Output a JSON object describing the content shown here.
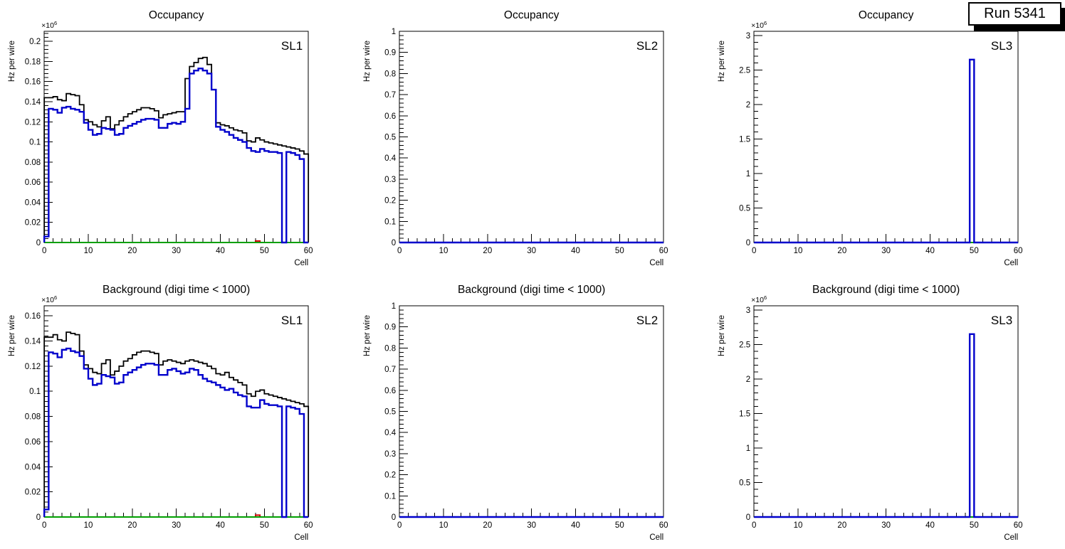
{
  "run_badge": {
    "label": "Run 5341"
  },
  "palette": {
    "black": "#000000",
    "blue": "#0000cc",
    "green": "#00a000",
    "red": "#cc0000",
    "frame": "#000000"
  },
  "chart_data": [
    {
      "id": "occupancy-sl1",
      "type": "bar",
      "title": "Occupancy",
      "pad_label": "SL1",
      "xlabel": "Cell",
      "ylabel": "Hz per wire",
      "y_mult_base": "×10",
      "y_mult_exp": "6",
      "x": {
        "min": 0,
        "max": 60,
        "major_step": 10,
        "minor_step": 2
      },
      "y": {
        "min": 0,
        "max": 0.21,
        "label_max": 0.2,
        "major_step": 0.02,
        "minor_step": 0.004
      },
      "grid": false,
      "legend": "none",
      "series": [
        {
          "name": "total-rate",
          "color": "black",
          "width": 1.8,
          "values": [
            0.144,
            0.144,
            0.145,
            0.142,
            0.141,
            0.148,
            0.147,
            0.146,
            0.137,
            0.122,
            0.12,
            0.117,
            0.115,
            0.121,
            0.125,
            0.113,
            0.117,
            0.121,
            0.125,
            0.128,
            0.13,
            0.132,
            0.134,
            0.134,
            0.133,
            0.131,
            0.124,
            0.127,
            0.128,
            0.129,
            0.13,
            0.13,
            0.163,
            0.175,
            0.179,
            0.183,
            0.184,
            0.177,
            0.152,
            0.119,
            0.117,
            0.116,
            0.114,
            0.112,
            0.111,
            0.109,
            0.101,
            0.1,
            0.104,
            0.102,
            0.1,
            0.099,
            0.098,
            0.097,
            0.096,
            0.095,
            0.094,
            0.093,
            0.091,
            0.088
          ]
        },
        {
          "name": "noise-rate",
          "color": "red",
          "width": 2,
          "sparse": {
            "length": 60,
            "default": 0,
            "at": {
              "48": 0.0015
            }
          }
        },
        {
          "name": "zero-baseline",
          "color": "green",
          "width": 2,
          "sparse": {
            "length": 60,
            "default": 0,
            "at": {}
          }
        },
        {
          "name": "selected-rate",
          "color": "blue",
          "width": 2.4,
          "values": [
            0.006,
            0.133,
            0.132,
            0.129,
            0.134,
            0.135,
            0.133,
            0.132,
            0.13,
            0.119,
            0.112,
            0.107,
            0.108,
            0.114,
            0.113,
            0.112,
            0.107,
            0.108,
            0.114,
            0.116,
            0.118,
            0.12,
            0.122,
            0.123,
            0.123,
            0.122,
            0.114,
            0.114,
            0.118,
            0.119,
            0.118,
            0.12,
            0.133,
            0.168,
            0.171,
            0.173,
            0.171,
            0.168,
            0.152,
            0.115,
            0.112,
            0.11,
            0.107,
            0.104,
            0.102,
            0.1,
            0.094,
            0.091,
            0.09,
            0.093,
            0.091,
            0.09,
            0.09,
            0.089,
            0,
            0.09,
            0.089,
            0.087,
            0.083,
            0
          ]
        }
      ]
    },
    {
      "id": "occupancy-sl2",
      "type": "bar",
      "title": "Occupancy",
      "pad_label": "SL2",
      "xlabel": "Cell",
      "ylabel": "Hz per wire",
      "y_mult_base": null,
      "y_mult_exp": null,
      "x": {
        "min": 0,
        "max": 60,
        "major_step": 10,
        "minor_step": 2
      },
      "y": {
        "min": 0,
        "max": 1.0,
        "label_max": 1.0,
        "major_step": 0.1,
        "minor_step": 0.02
      },
      "grid": false,
      "legend": "none",
      "series": [
        {
          "name": "zero-baseline",
          "color": "green",
          "width": 2,
          "sparse": {
            "length": 60,
            "default": 0,
            "at": {}
          }
        },
        {
          "name": "selected-rate",
          "color": "blue",
          "width": 2.4,
          "sparse": {
            "length": 60,
            "default": 0,
            "at": {}
          }
        }
      ]
    },
    {
      "id": "occupancy-sl3",
      "type": "bar",
      "title": "Occupancy",
      "pad_label": "SL3",
      "xlabel": "Cell",
      "ylabel": "Hz per wire",
      "y_mult_base": "×10",
      "y_mult_exp": "6",
      "x": {
        "min": 0,
        "max": 60,
        "major_step": 10,
        "minor_step": 2
      },
      "y": {
        "min": 0,
        "max": 3.06,
        "label_max": 3.0,
        "major_step": 0.5,
        "minor_step": 0.1
      },
      "grid": false,
      "legend": "none",
      "series": [
        {
          "name": "zero-baseline",
          "color": "green",
          "width": 2,
          "sparse": {
            "length": 60,
            "default": 0,
            "at": {}
          }
        },
        {
          "name": "selected-rate",
          "color": "blue",
          "width": 2.4,
          "sparse": {
            "length": 60,
            "default": 0,
            "at": {
              "49": 2.65
            }
          }
        }
      ]
    },
    {
      "id": "background-sl1",
      "type": "bar",
      "title": "Background (digi time < 1000)",
      "pad_label": "SL1",
      "xlabel": "Cell",
      "ylabel": "Hz per wire",
      "y_mult_base": "×10",
      "y_mult_exp": "6",
      "x": {
        "min": 0,
        "max": 60,
        "major_step": 10,
        "minor_step": 2
      },
      "y": {
        "min": 0,
        "max": 0.168,
        "label_max": 0.16,
        "major_step": 0.02,
        "minor_step": 0.004
      },
      "grid": false,
      "legend": "none",
      "series": [
        {
          "name": "total-rate",
          "color": "black",
          "width": 1.8,
          "values": [
            0.143,
            0.143,
            0.145,
            0.141,
            0.14,
            0.147,
            0.146,
            0.145,
            0.132,
            0.121,
            0.118,
            0.115,
            0.114,
            0.122,
            0.125,
            0.113,
            0.116,
            0.12,
            0.124,
            0.126,
            0.129,
            0.131,
            0.132,
            0.132,
            0.131,
            0.13,
            0.121,
            0.124,
            0.125,
            0.124,
            0.123,
            0.122,
            0.124,
            0.125,
            0.124,
            0.123,
            0.122,
            0.12,
            0.118,
            0.114,
            0.113,
            0.115,
            0.111,
            0.109,
            0.107,
            0.105,
            0.098,
            0.096,
            0.1,
            0.101,
            0.098,
            0.097,
            0.096,
            0.095,
            0.094,
            0.093,
            0.092,
            0.091,
            0.09,
            0.088
          ]
        },
        {
          "name": "noise-rate",
          "color": "red",
          "width": 2,
          "sparse": {
            "length": 60,
            "default": 0,
            "at": {
              "48": 0.0015
            }
          }
        },
        {
          "name": "zero-baseline",
          "color": "green",
          "width": 2,
          "sparse": {
            "length": 60,
            "default": 0,
            "at": {}
          }
        },
        {
          "name": "selected-rate",
          "color": "blue",
          "width": 2.4,
          "values": [
            0.006,
            0.131,
            0.13,
            0.127,
            0.133,
            0.134,
            0.132,
            0.131,
            0.128,
            0.118,
            0.11,
            0.105,
            0.106,
            0.113,
            0.112,
            0.111,
            0.106,
            0.107,
            0.113,
            0.115,
            0.117,
            0.119,
            0.121,
            0.122,
            0.122,
            0.121,
            0.113,
            0.113,
            0.117,
            0.118,
            0.116,
            0.114,
            0.115,
            0.118,
            0.117,
            0.113,
            0.11,
            0.108,
            0.107,
            0.105,
            0.103,
            0.101,
            0.102,
            0.099,
            0.097,
            0.096,
            0.088,
            0.087,
            0.087,
            0.093,
            0.09,
            0.089,
            0.089,
            0.088,
            0,
            0.088,
            0.087,
            0.086,
            0.082,
            0
          ]
        }
      ]
    },
    {
      "id": "background-sl2",
      "type": "bar",
      "title": "Background (digi time < 1000)",
      "pad_label": "SL2",
      "xlabel": "Cell",
      "ylabel": "Hz per wire",
      "y_mult_base": null,
      "y_mult_exp": null,
      "x": {
        "min": 0,
        "max": 60,
        "major_step": 10,
        "minor_step": 2
      },
      "y": {
        "min": 0,
        "max": 1.0,
        "label_max": 1.0,
        "major_step": 0.1,
        "minor_step": 0.02
      },
      "grid": false,
      "legend": "none",
      "series": [
        {
          "name": "zero-baseline",
          "color": "green",
          "width": 2,
          "sparse": {
            "length": 60,
            "default": 0,
            "at": {}
          }
        },
        {
          "name": "selected-rate",
          "color": "blue",
          "width": 2.4,
          "sparse": {
            "length": 60,
            "default": 0,
            "at": {}
          }
        }
      ]
    },
    {
      "id": "background-sl3",
      "type": "bar",
      "title": "Background (digi time < 1000)",
      "pad_label": "SL3",
      "xlabel": "Cell",
      "ylabel": "Hz per wire",
      "y_mult_base": "×10",
      "y_mult_exp": "6",
      "x": {
        "min": 0,
        "max": 60,
        "major_step": 10,
        "minor_step": 2
      },
      "y": {
        "min": 0,
        "max": 3.06,
        "label_max": 3.0,
        "major_step": 0.5,
        "minor_step": 0.1
      },
      "grid": false,
      "legend": "none",
      "series": [
        {
          "name": "zero-baseline",
          "color": "green",
          "width": 2,
          "sparse": {
            "length": 60,
            "default": 0,
            "at": {}
          }
        },
        {
          "name": "selected-rate",
          "color": "blue",
          "width": 2.4,
          "sparse": {
            "length": 60,
            "default": 0,
            "at": {
              "49": 2.65
            }
          }
        }
      ]
    }
  ]
}
